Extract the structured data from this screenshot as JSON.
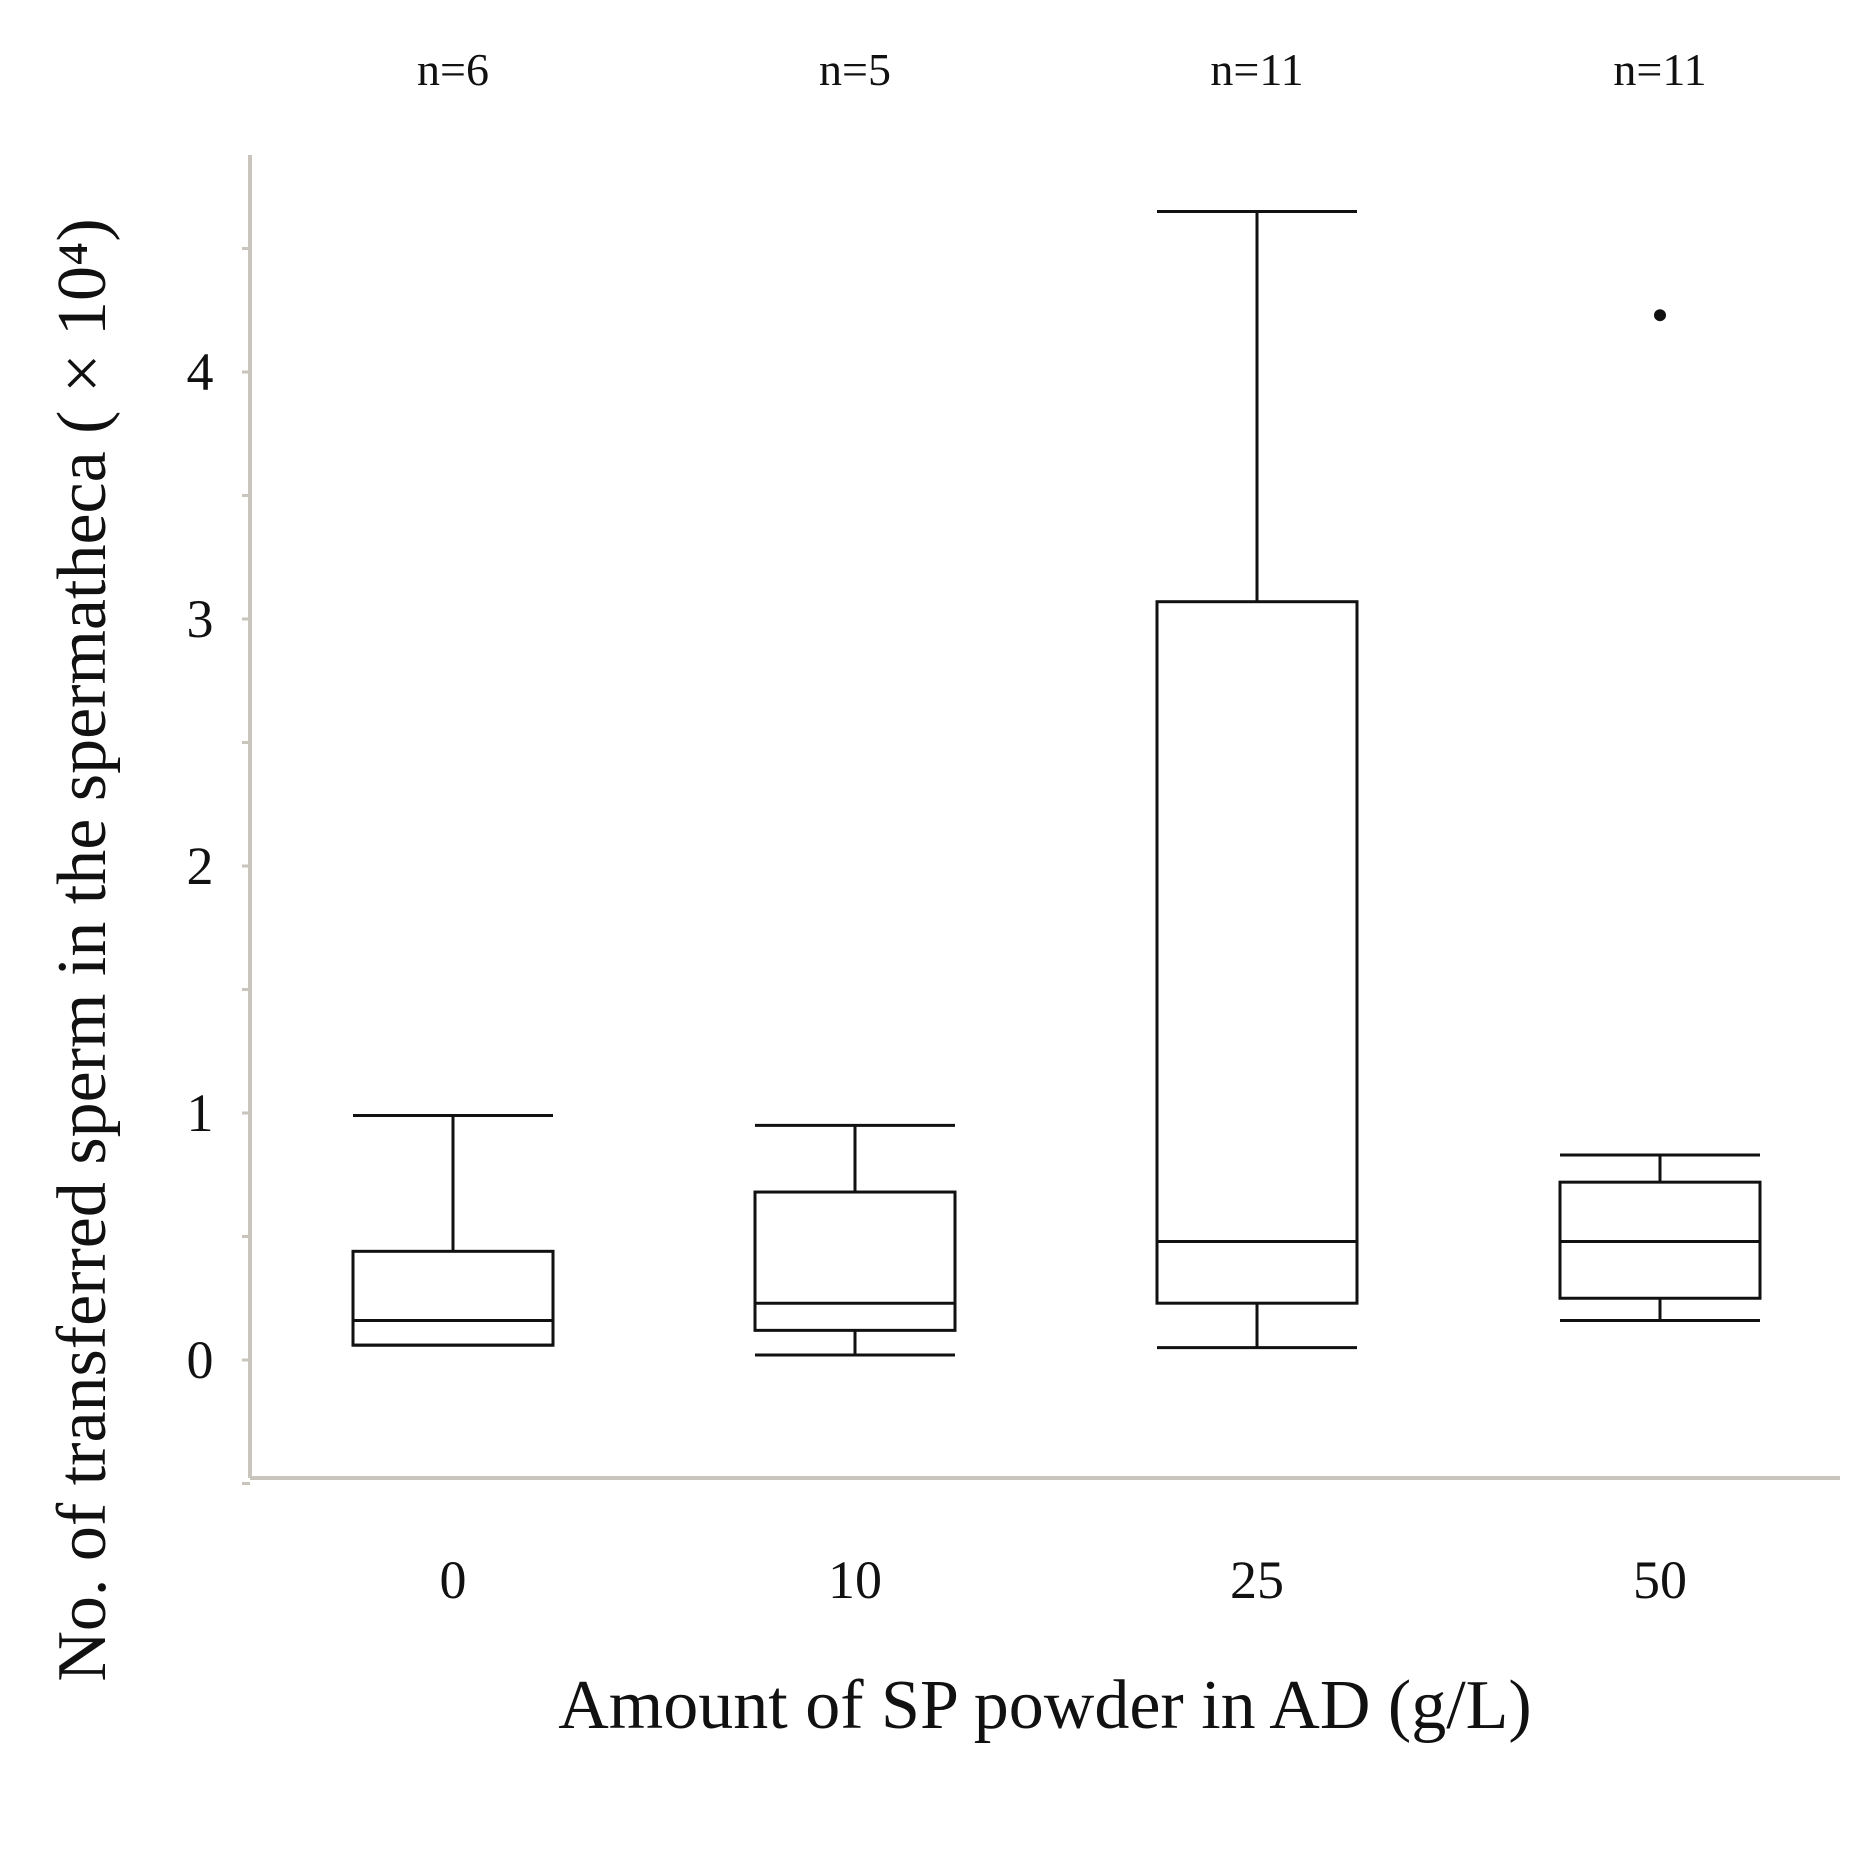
{
  "chart_data": {
    "type": "box",
    "categories": [
      "0",
      "10",
      "25",
      "50"
    ],
    "group_sizes": [
      "n=6",
      "n=5",
      "n=11",
      "n=11"
    ],
    "boxes": [
      {
        "category": "0",
        "min": 0.06,
        "q1": 0.06,
        "median": 0.16,
        "q3": 0.44,
        "max": 0.99,
        "outliers": []
      },
      {
        "category": "10",
        "min": 0.02,
        "q1": 0.12,
        "median": 0.23,
        "q3": 0.68,
        "max": 0.95,
        "outliers": []
      },
      {
        "category": "25",
        "min": 0.05,
        "q1": 0.23,
        "median": 0.48,
        "q3": 3.07,
        "max": 4.65,
        "outliers": []
      },
      {
        "category": "50",
        "min": 0.16,
        "q1": 0.25,
        "median": 0.48,
        "q3": 0.72,
        "max": 0.83,
        "outliers": [
          4.23
        ]
      }
    ],
    "ylim": [
      -0.5,
      4.85
    ],
    "yticks": [
      "0",
      "1",
      "2",
      "3",
      "4"
    ],
    "xlabel": "Amount of SP powder in AD (g/L)",
    "ylabel": "No. of transferred sperm in the spermatheca ( × 10⁴)",
    "grid": false
  }
}
